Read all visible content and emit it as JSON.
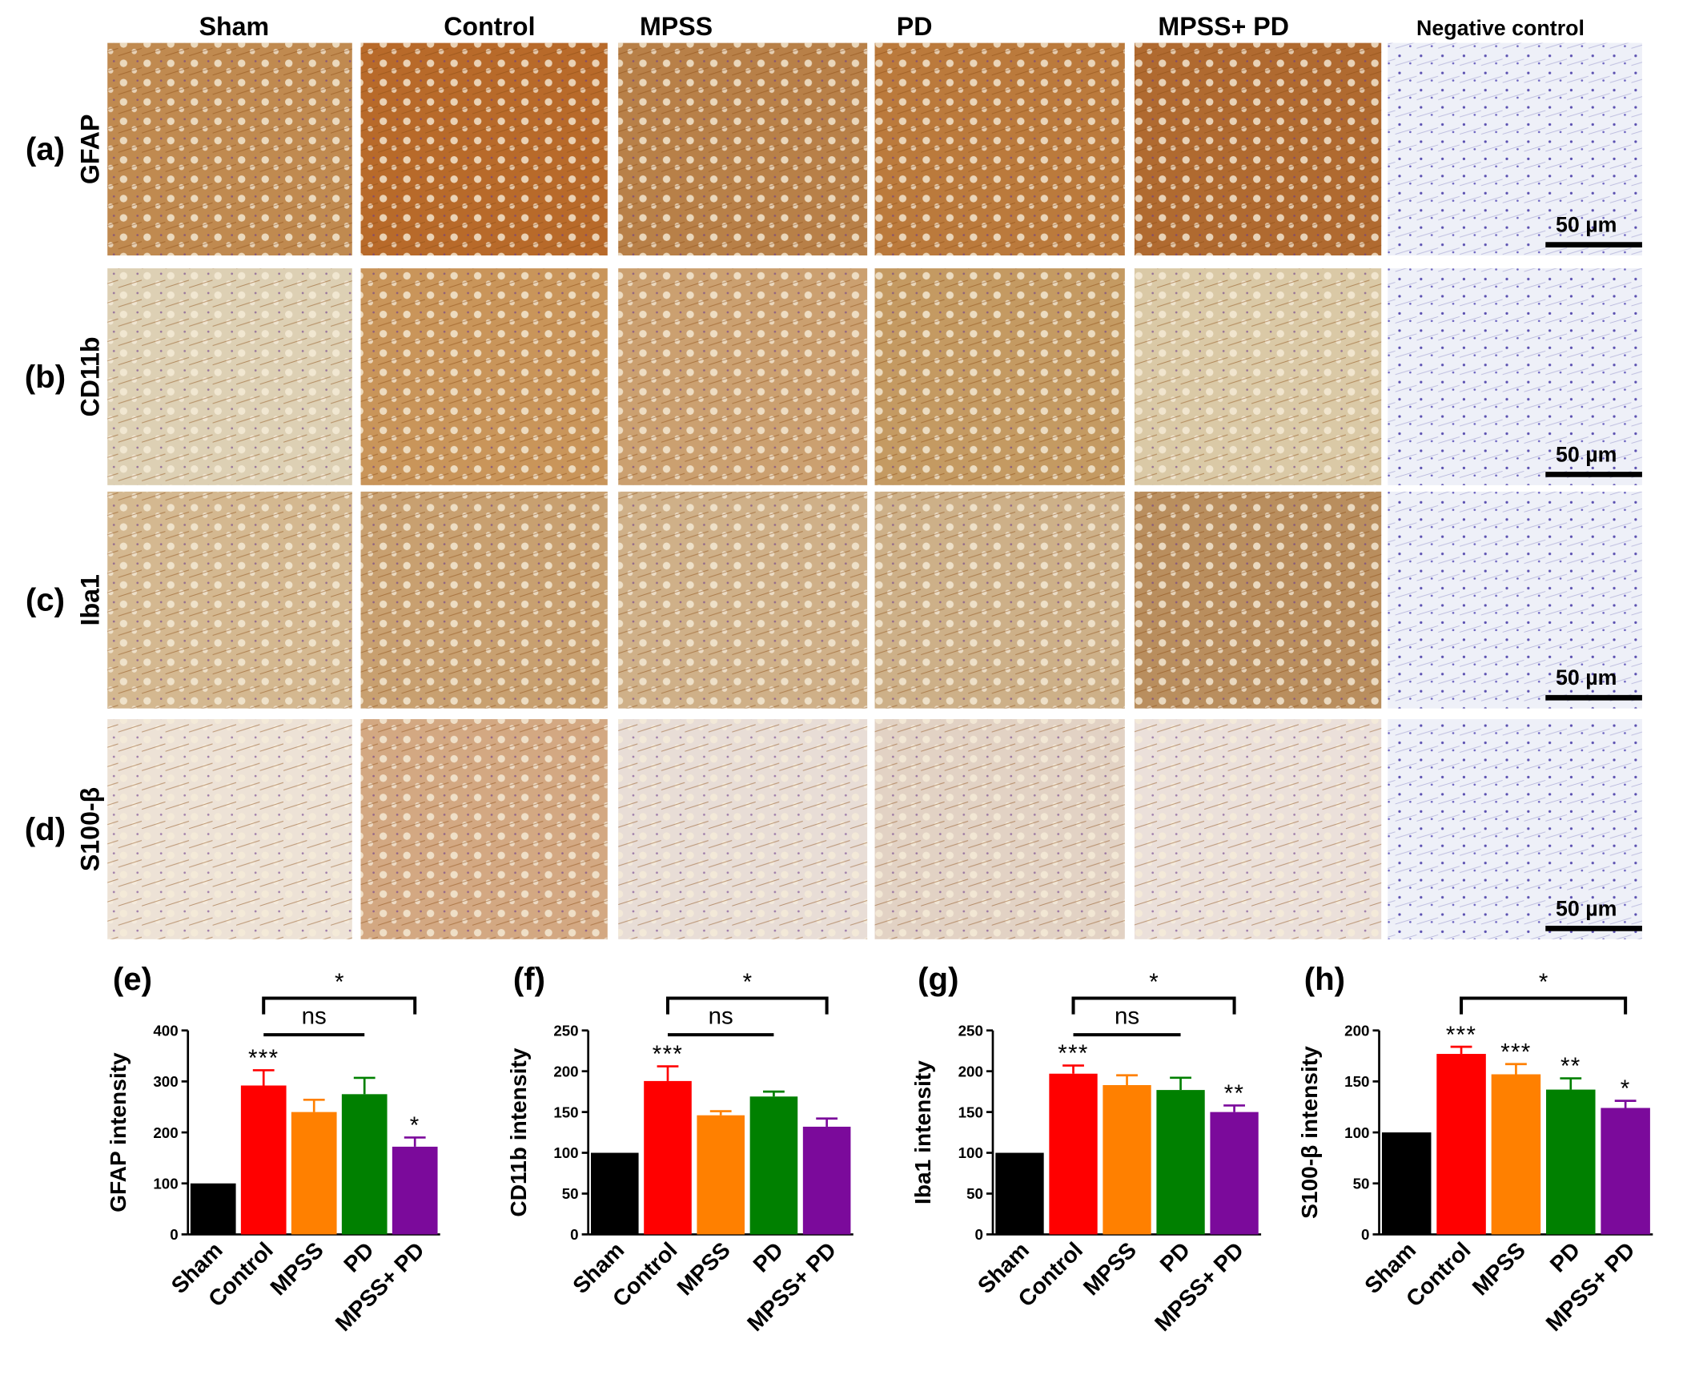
{
  "figure": {
    "columns": [
      "Sham",
      "Control",
      "MPSS",
      "PD",
      "MPSS+ PD",
      "Negative control"
    ],
    "rows": [
      {
        "panel": "(a)",
        "stain": "GFAP"
      },
      {
        "panel": "(b)",
        "stain": "CD11b"
      },
      {
        "panel": "(c)",
        "stain": "Iba1"
      },
      {
        "panel": "(d)",
        "stain": "S100-β"
      }
    ],
    "scale_bar": "50 µm"
  },
  "chart_data": [
    {
      "type": "bar",
      "title": "(e)",
      "y_label": "GFAP intensity",
      "categories": [
        "Sham",
        "Control",
        "MPSS",
        "PD",
        "MPSS+ PD"
      ],
      "series": [
        {
          "values": [
            100,
            292,
            240,
            275,
            172
          ],
          "errors": [
            0,
            30,
            24,
            32,
            18
          ]
        }
      ],
      "colors": [
        "#000000",
        "#ff0000",
        "#ff8000",
        "#008000",
        "#7b0a9b"
      ],
      "significance": [
        null,
        "***",
        null,
        null,
        "*"
      ],
      "comparisons": [
        {
          "label": "*",
          "from": 1,
          "to": 4
        },
        {
          "label": "ns",
          "from": 1,
          "to": 3
        }
      ],
      "ylim": [
        0,
        400
      ],
      "yticks": [
        0,
        100,
        200,
        300,
        400
      ]
    },
    {
      "type": "bar",
      "title": "(f)",
      "y_label": "CD11b intensity",
      "categories": [
        "Sham",
        "Control",
        "MPSS",
        "PD",
        "MPSS+ PD"
      ],
      "series": [
        {
          "values": [
            100,
            188,
            146,
            169,
            132
          ],
          "errors": [
            0,
            18,
            5,
            6,
            10
          ]
        }
      ],
      "colors": [
        "#000000",
        "#ff0000",
        "#ff8000",
        "#008000",
        "#7b0a9b"
      ],
      "significance": [
        null,
        "***",
        null,
        null,
        null
      ],
      "comparisons": [
        {
          "label": "*",
          "from": 1,
          "to": 4
        },
        {
          "label": "ns",
          "from": 1,
          "to": 3
        }
      ],
      "ylim": [
        0,
        250
      ],
      "yticks": [
        0,
        50,
        100,
        150,
        200,
        250
      ]
    },
    {
      "type": "bar",
      "title": "(g)",
      "y_label": "Iba1 intensity",
      "categories": [
        "Sham",
        "Control",
        "MPSS",
        "PD",
        "MPSS+ PD"
      ],
      "series": [
        {
          "values": [
            100,
            197,
            183,
            177,
            150
          ],
          "errors": [
            0,
            10,
            12,
            15,
            8
          ]
        }
      ],
      "colors": [
        "#000000",
        "#ff0000",
        "#ff8000",
        "#008000",
        "#7b0a9b"
      ],
      "significance": [
        null,
        "***",
        null,
        null,
        "**"
      ],
      "comparisons": [
        {
          "label": "*",
          "from": 1,
          "to": 4
        },
        {
          "label": "ns",
          "from": 1,
          "to": 3
        }
      ],
      "ylim": [
        0,
        250
      ],
      "yticks": [
        0,
        50,
        100,
        150,
        200,
        250
      ]
    },
    {
      "type": "bar",
      "title": "(h)",
      "y_label": "S100-β intensity",
      "categories": [
        "Sham",
        "Control",
        "MPSS",
        "PD",
        "MPSS+ PD"
      ],
      "series": [
        {
          "values": [
            100,
            177,
            157,
            142,
            124
          ],
          "errors": [
            0,
            7,
            10,
            11,
            7
          ]
        }
      ],
      "colors": [
        "#000000",
        "#ff0000",
        "#ff8000",
        "#008000",
        "#7b0a9b"
      ],
      "significance": [
        null,
        "***",
        "***",
        "**",
        "*"
      ],
      "comparisons": [
        {
          "label": "*",
          "from": 1,
          "to": 4
        }
      ],
      "ylim": [
        0,
        200
      ],
      "yticks": [
        0,
        50,
        100,
        150,
        200
      ]
    }
  ]
}
